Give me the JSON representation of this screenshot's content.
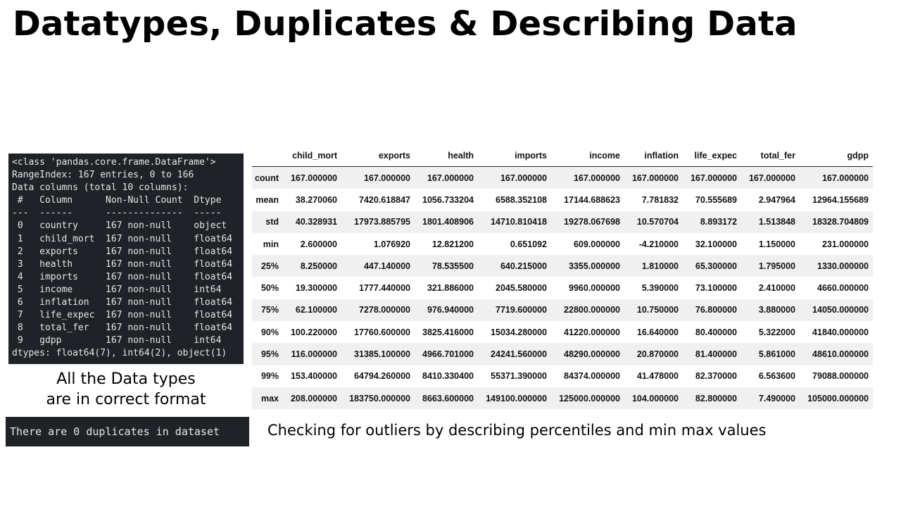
{
  "slide": {
    "title": "Datatypes, Duplicates & Describing Data",
    "types_caption_line1": "All the Data types",
    "types_caption_line2": "are in correct format",
    "duplicates_text": "There are 0 duplicates in dataset",
    "outlier_caption": "Checking for outliers by describing percentiles and min max values"
  },
  "info_output": [
    "<class 'pandas.core.frame.DataFrame'>",
    "RangeIndex: 167 entries, 0 to 166",
    "Data columns (total 10 columns):",
    " #   Column      Non-Null Count  Dtype",
    "---  ------      --------------  -----",
    " 0   country     167 non-null    object",
    " 1   child_mort  167 non-null    float64",
    " 2   exports     167 non-null    float64",
    " 3   health      167 non-null    float64",
    " 4   imports     167 non-null    float64",
    " 5   income      167 non-null    int64",
    " 6   inflation   167 non-null    float64",
    " 7   life_expec  167 non-null    float64",
    " 8   total_fer   167 non-null    float64",
    " 9   gdpp        167 non-null    int64",
    "dtypes: float64(7), int64(2), object(1)"
  ],
  "describe": {
    "columns": [
      "child_mort",
      "exports",
      "health",
      "imports",
      "income",
      "inflation",
      "life_expec",
      "total_fer",
      "gdpp"
    ],
    "rows": [
      {
        "label": "count",
        "values": [
          "167.000000",
          "167.000000",
          "167.000000",
          "167.000000",
          "167.000000",
          "167.000000",
          "167.000000",
          "167.000000",
          "167.000000"
        ]
      },
      {
        "label": "mean",
        "values": [
          "38.270060",
          "7420.618847",
          "1056.733204",
          "6588.352108",
          "17144.688623",
          "7.781832",
          "70.555689",
          "2.947964",
          "12964.155689"
        ]
      },
      {
        "label": "std",
        "values": [
          "40.328931",
          "17973.885795",
          "1801.408906",
          "14710.810418",
          "19278.067698",
          "10.570704",
          "8.893172",
          "1.513848",
          "18328.704809"
        ]
      },
      {
        "label": "min",
        "values": [
          "2.600000",
          "1.076920",
          "12.821200",
          "0.651092",
          "609.000000",
          "-4.210000",
          "32.100000",
          "1.150000",
          "231.000000"
        ]
      },
      {
        "label": "25%",
        "values": [
          "8.250000",
          "447.140000",
          "78.535500",
          "640.215000",
          "3355.000000",
          "1.810000",
          "65.300000",
          "1.795000",
          "1330.000000"
        ]
      },
      {
        "label": "50%",
        "values": [
          "19.300000",
          "1777.440000",
          "321.886000",
          "2045.580000",
          "9960.000000",
          "5.390000",
          "73.100000",
          "2.410000",
          "4660.000000"
        ]
      },
      {
        "label": "75%",
        "values": [
          "62.100000",
          "7278.000000",
          "976.940000",
          "7719.600000",
          "22800.000000",
          "10.750000",
          "76.800000",
          "3.880000",
          "14050.000000"
        ]
      },
      {
        "label": "90%",
        "values": [
          "100.220000",
          "17760.600000",
          "3825.416000",
          "15034.280000",
          "41220.000000",
          "16.640000",
          "80.400000",
          "5.322000",
          "41840.000000"
        ]
      },
      {
        "label": "95%",
        "values": [
          "116.000000",
          "31385.100000",
          "4966.701000",
          "24241.560000",
          "48290.000000",
          "20.870000",
          "81.400000",
          "5.861000",
          "48610.000000"
        ]
      },
      {
        "label": "99%",
        "values": [
          "153.400000",
          "64794.260000",
          "8410.330400",
          "55371.390000",
          "84374.000000",
          "41.478000",
          "82.370000",
          "6.563600",
          "79088.000000"
        ]
      },
      {
        "label": "max",
        "values": [
          "208.000000",
          "183750.000000",
          "8663.600000",
          "149100.000000",
          "125000.000000",
          "104.000000",
          "82.800000",
          "7.490000",
          "105000.000000"
        ]
      }
    ]
  }
}
